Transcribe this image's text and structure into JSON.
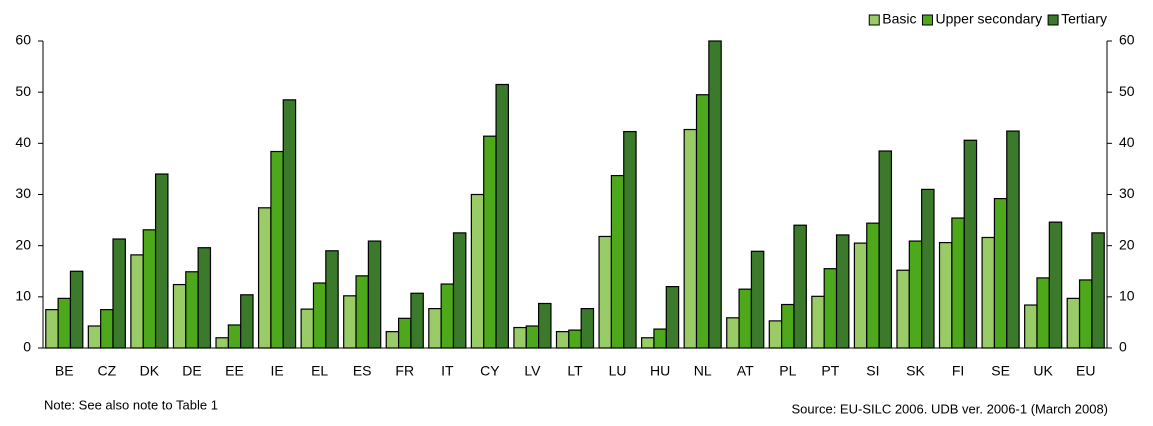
{
  "chart_data": {
    "type": "bar",
    "categories": [
      "BE",
      "CZ",
      "DK",
      "DE",
      "EE",
      "IE",
      "EL",
      "ES",
      "FR",
      "IT",
      "CY",
      "LV",
      "LT",
      "LU",
      "HU",
      "NL",
      "AT",
      "PL",
      "PT",
      "SI",
      "SK",
      "FI",
      "SE",
      "UK",
      "EU"
    ],
    "series": [
      {
        "name": "Basic",
        "color": "#99cc66",
        "values": [
          7.5,
          4.3,
          18.2,
          12.4,
          2,
          27.4,
          7.6,
          10.2,
          3.2,
          7.7,
          30,
          4,
          3.2,
          21.8,
          2,
          42.7,
          5.9,
          5.3,
          10.1,
          20.5,
          15.2,
          20.6,
          21.6,
          8.4,
          9.7
        ]
      },
      {
        "name": "Upper secondary",
        "color": "#4ea81c",
        "values": [
          9.7,
          7.5,
          23.1,
          14.9,
          4.5,
          38.4,
          12.7,
          14.1,
          5.8,
          12.5,
          41.4,
          4.3,
          3.5,
          33.7,
          3.7,
          49.5,
          11.5,
          8.5,
          15.5,
          24.4,
          20.9,
          25.4,
          29.2,
          13.7,
          13.3
        ]
      },
      {
        "name": "Tertiary",
        "color": "#3a7a2a",
        "values": [
          15,
          21.3,
          34,
          19.6,
          10.4,
          48.5,
          19,
          20.9,
          10.7,
          22.5,
          51.5,
          8.7,
          7.7,
          42.3,
          12,
          60,
          18.9,
          24,
          22.1,
          38.5,
          31,
          40.6,
          42.4,
          24.6,
          22.5
        ]
      }
    ],
    "ylim": [
      0,
      60
    ],
    "yticks": [
      0,
      10,
      20,
      30,
      40,
      50,
      60
    ],
    "y2lim": [
      0,
      60
    ],
    "y2ticks": [
      0,
      10,
      20,
      30,
      40,
      50,
      60
    ],
    "legend": "top-right",
    "note": "Note: See also note to Table 1",
    "source": "Source: EU-SILC 2006. UDB ver. 2006-1 (March 2008)"
  }
}
